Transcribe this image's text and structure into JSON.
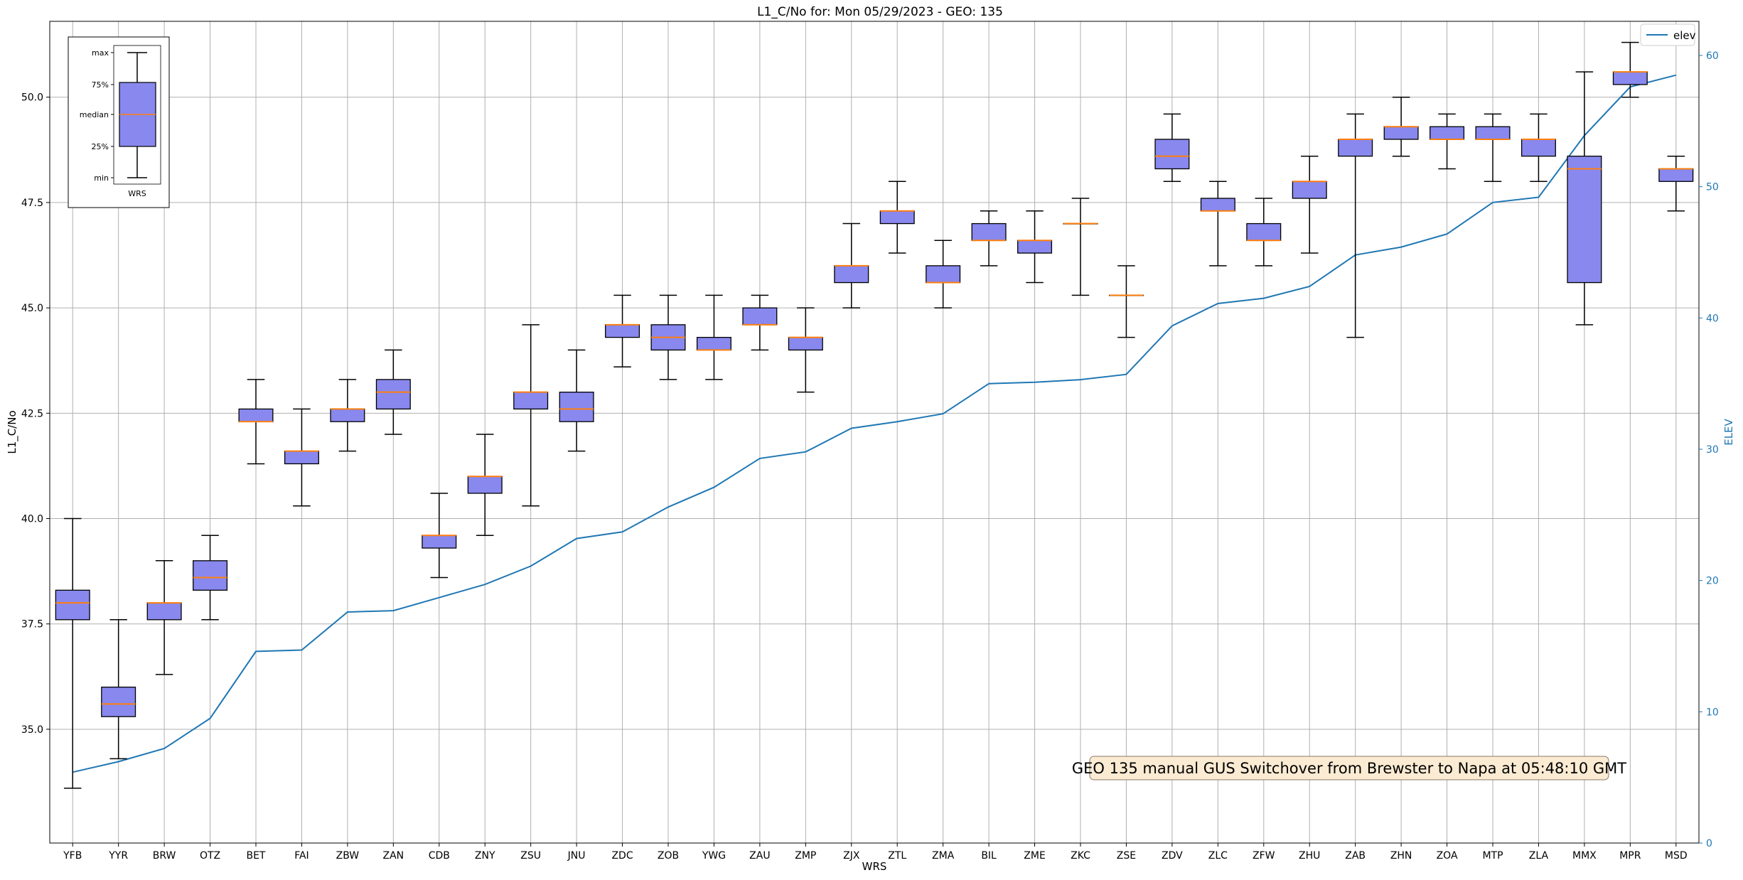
{
  "chart_data": {
    "type": "box",
    "title": "L1_C/No for: Mon 05/29/2023 - GEO: 135",
    "xlabel": "WRS",
    "ylabel": "L1_C/No",
    "ylabel_right": "ELEV",
    "ylim": [
      32.3,
      51.8
    ],
    "ylim_right": [
      0,
      62.6
    ],
    "yticks": [
      "35.0",
      "37.5",
      "40.0",
      "42.5",
      "45.0",
      "47.5",
      "50.0"
    ],
    "yticks_right": [
      "0",
      "10",
      "20",
      "30",
      "40",
      "50",
      "60"
    ],
    "grid": true,
    "legend": {
      "position": "top-right",
      "entries": [
        "elev"
      ]
    },
    "colors": {
      "box_fill": "#8888ee",
      "median": "#ff7f0e",
      "line": "#1f77b4"
    },
    "categories": [
      "YFB",
      "YYR",
      "BRW",
      "OTZ",
      "BET",
      "FAI",
      "ZBW",
      "ZAN",
      "CDB",
      "ZNY",
      "ZSU",
      "JNU",
      "ZDC",
      "ZOB",
      "YWG",
      "ZAU",
      "ZMP",
      "ZJX",
      "ZTL",
      "ZMA",
      "BIL",
      "ZME",
      "ZKC",
      "ZSE",
      "ZDV",
      "ZLC",
      "ZFW",
      "ZHU",
      "ZAB",
      "ZHN",
      "ZOA",
      "MTP",
      "ZLA",
      "MMX",
      "MPR",
      "MSD"
    ],
    "boxes": [
      {
        "min": 33.6,
        "q1": 37.6,
        "median": 38.0,
        "q3": 38.3,
        "max": 40.0
      },
      {
        "min": 34.3,
        "q1": 35.3,
        "median": 35.6,
        "q3": 36.0,
        "max": 37.6
      },
      {
        "min": 36.3,
        "q1": 37.6,
        "median": 38.0,
        "q3": 38.0,
        "max": 39.0
      },
      {
        "min": 37.6,
        "q1": 38.3,
        "median": 38.6,
        "q3": 39.0,
        "max": 39.6
      },
      {
        "min": 41.3,
        "q1": 42.3,
        "median": 42.3,
        "q3": 42.6,
        "max": 43.3
      },
      {
        "min": 40.3,
        "q1": 41.3,
        "median": 41.6,
        "q3": 41.6,
        "max": 42.6
      },
      {
        "min": 41.6,
        "q1": 42.3,
        "median": 42.6,
        "q3": 42.6,
        "max": 43.3
      },
      {
        "min": 42.0,
        "q1": 42.6,
        "median": 43.0,
        "q3": 43.3,
        "max": 44.0
      },
      {
        "min": 38.6,
        "q1": 39.3,
        "median": 39.6,
        "q3": 39.6,
        "max": 40.6
      },
      {
        "min": 39.6,
        "q1": 40.6,
        "median": 41.0,
        "q3": 41.0,
        "max": 42.0
      },
      {
        "min": 40.3,
        "q1": 42.6,
        "median": 43.0,
        "q3": 43.0,
        "max": 44.6
      },
      {
        "min": 41.6,
        "q1": 42.3,
        "median": 42.6,
        "q3": 43.0,
        "max": 44.0
      },
      {
        "min": 43.6,
        "q1": 44.3,
        "median": 44.6,
        "q3": 44.6,
        "max": 45.3
      },
      {
        "min": 43.3,
        "q1": 44.0,
        "median": 44.3,
        "q3": 44.6,
        "max": 45.3
      },
      {
        "min": 43.3,
        "q1": 44.0,
        "median": 44.0,
        "q3": 44.3,
        "max": 45.3
      },
      {
        "min": 44.0,
        "q1": 44.6,
        "median": 44.6,
        "q3": 45.0,
        "max": 45.3
      },
      {
        "min": 43.0,
        "q1": 44.0,
        "median": 44.3,
        "q3": 44.3,
        "max": 45.0
      },
      {
        "min": 45.0,
        "q1": 45.6,
        "median": 46.0,
        "q3": 46.0,
        "max": 47.0
      },
      {
        "min": 46.3,
        "q1": 47.0,
        "median": 47.3,
        "q3": 47.3,
        "max": 48.0
      },
      {
        "min": 45.0,
        "q1": 45.6,
        "median": 45.6,
        "q3": 46.0,
        "max": 46.6
      },
      {
        "min": 46.0,
        "q1": 46.6,
        "median": 46.6,
        "q3": 47.0,
        "max": 47.3
      },
      {
        "min": 45.6,
        "q1": 46.3,
        "median": 46.6,
        "q3": 46.6,
        "max": 47.3
      },
      {
        "min": 45.3,
        "q1": 47.0,
        "median": 47.0,
        "q3": 47.0,
        "max": 47.6
      },
      {
        "min": 44.3,
        "q1": 45.3,
        "median": 45.3,
        "q3": 45.3,
        "max": 46.0
      },
      {
        "min": 48.0,
        "q1": 48.3,
        "median": 48.6,
        "q3": 49.0,
        "max": 49.6
      },
      {
        "min": 46.0,
        "q1": 47.3,
        "median": 47.3,
        "q3": 47.6,
        "max": 48.0
      },
      {
        "min": 46.0,
        "q1": 46.6,
        "median": 46.6,
        "q3": 47.0,
        "max": 47.6
      },
      {
        "min": 46.3,
        "q1": 47.6,
        "median": 48.0,
        "q3": 48.0,
        "max": 48.6
      },
      {
        "min": 44.3,
        "q1": 48.6,
        "median": 49.0,
        "q3": 49.0,
        "max": 49.6
      },
      {
        "min": 48.6,
        "q1": 49.0,
        "median": 49.3,
        "q3": 49.3,
        "max": 50.0
      },
      {
        "min": 48.3,
        "q1": 49.0,
        "median": 49.0,
        "q3": 49.3,
        "max": 49.6
      },
      {
        "min": 48.0,
        "q1": 49.0,
        "median": 49.0,
        "q3": 49.3,
        "max": 49.6
      },
      {
        "min": 48.0,
        "q1": 48.6,
        "median": 49.0,
        "q3": 49.0,
        "max": 49.6
      },
      {
        "min": 44.6,
        "q1": 45.6,
        "median": 48.3,
        "q3": 48.6,
        "max": 50.6
      },
      {
        "min": 50.0,
        "q1": 50.3,
        "median": 50.6,
        "q3": 50.6,
        "max": 51.3
      },
      {
        "min": 47.3,
        "q1": 48.0,
        "median": 48.3,
        "q3": 48.3,
        "max": 48.6
      }
    ],
    "series": [
      {
        "name": "elev",
        "axis": "right",
        "values": [
          5.4,
          6.2,
          7.2,
          9.5,
          14.6,
          14.7,
          17.6,
          17.7,
          18.7,
          19.7,
          21.1,
          23.2,
          23.7,
          25.6,
          27.1,
          29.3,
          29.8,
          31.6,
          32.1,
          32.7,
          35.0,
          35.1,
          35.3,
          35.7,
          39.4,
          41.1,
          41.5,
          42.4,
          44.8,
          45.4,
          46.4,
          48.8,
          49.2,
          53.9,
          57.6,
          58.5
        ]
      }
    ],
    "annotation": "GEO 135 manual GUS Switchover from Brewster to Napa at 05:48:10 GMT",
    "inset_legend": {
      "labels": [
        "max",
        "75%",
        "median",
        "25%",
        "min"
      ],
      "xlabel": "WRS"
    }
  }
}
